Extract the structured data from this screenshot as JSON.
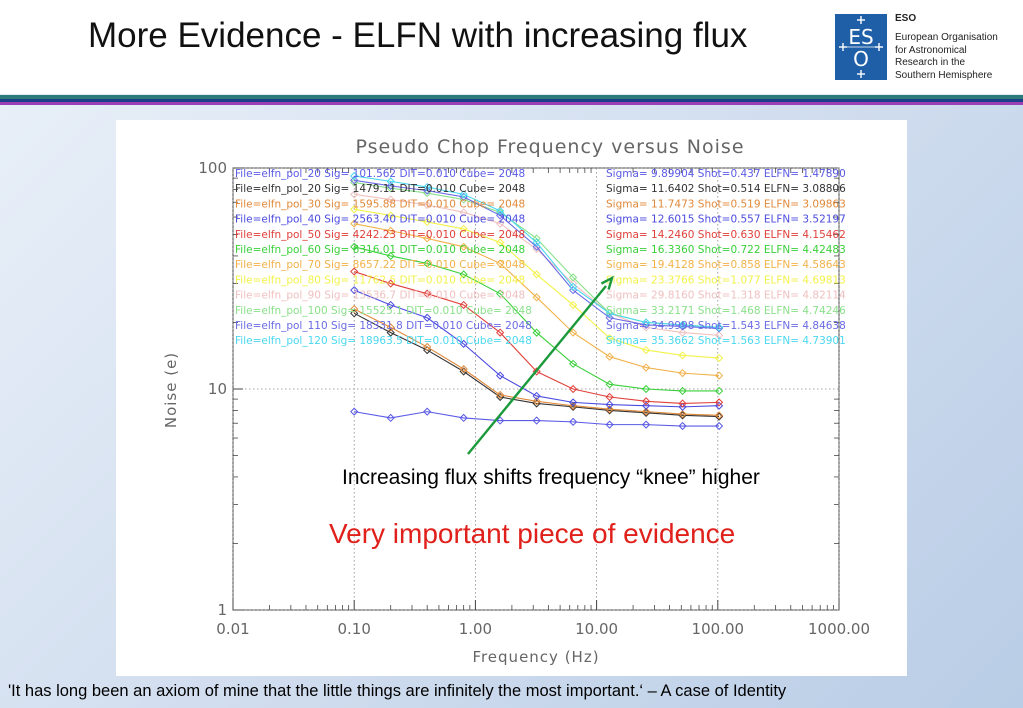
{
  "slide": {
    "title": "More Evidence - ELFN with increasing flux",
    "org": {
      "abbrev": "ESO",
      "name_lines": [
        "European Organisation",
        "for Astronomical",
        "Research in the",
        "Southern Hemisphere"
      ],
      "logo_icon": "eso-logo-icon"
    },
    "annotation_knee": "Increasing flux shifts frequency “knee” higher",
    "annotation_important": "Very important piece of evidence",
    "quote": "'It has long been an axiom of mine that the little things are infinitely the most important.‘ – A case of Identity",
    "colors": {
      "band_teal": "#2d7b7b",
      "band_navy": "#1d3f88",
      "band_purple": "#9a3fb5",
      "arrow": "#1a9a3a",
      "important_text": "#e0201b"
    }
  },
  "chart_data": {
    "type": "line",
    "title": "Pseudo Chop Frequency versus Noise",
    "xlabel": "Frequency (Hz)",
    "ylabel": "Noise (e)",
    "xscale": "log",
    "yscale": "log",
    "xlim": [
      0.01,
      1000
    ],
    "ylim": [
      1,
      100
    ],
    "x_ticks": [
      "0.01",
      "0.10",
      "1.00",
      "10.00",
      "100.00",
      "1000.00"
    ],
    "y_ticks": [
      "1",
      "10",
      "100"
    ],
    "grid": "dotted at decades",
    "legend_placement": "top, two columns",
    "x": [
      0.1,
      0.2,
      0.4,
      0.8,
      1.6,
      3.2,
      6.4,
      12.8,
      25.6,
      51.2,
      102.4
    ],
    "series": [
      {
        "legend_left": "File=elfn_pol_20 Sig=  101.562 DIT=0.010 Cube= 2048",
        "legend_right": "Sigma= 9.89904 Shot=0.437 ELFN= 1.47890",
        "color": "#5a5ae6",
        "values": [
          7.9,
          7.4,
          7.9,
          7.4,
          7.2,
          7.2,
          7.1,
          6.9,
          6.9,
          6.8,
          6.8
        ]
      },
      {
        "legend_left": "File=elfn_pol_20 Sig= 1479.11 DIT=0.010 Cube= 2048",
        "legend_right": "Sigma= 11.6402 Shot=0.514 ELFN= 3.08806",
        "color": "#333333",
        "values": [
          22,
          18,
          15,
          12,
          9.2,
          8.6,
          8.3,
          8.0,
          7.8,
          7.6,
          7.5
        ]
      },
      {
        "legend_left": "File=elfn_pol_30 Sig= 1595.88 DIT=0.010 Cube= 2048",
        "legend_right": "Sigma= 11.7473 Shot=0.519 ELFN= 3.09863",
        "color": "#e0893a",
        "values": [
          23,
          19,
          15.5,
          12.3,
          9.4,
          8.8,
          8.4,
          8.1,
          7.9,
          7.7,
          7.6
        ]
      },
      {
        "legend_left": "File=elfn_pol_40 Sig= 2563.40 DIT=0.010 Cube= 2048",
        "legend_right": "Sigma= 12.6015 Shot=0.557 ELFN= 3.52197",
        "color": "#4b4be0",
        "values": [
          28,
          24,
          21,
          16,
          11.5,
          9.3,
          8.7,
          8.5,
          8.4,
          8.3,
          8.4
        ]
      },
      {
        "legend_left": "File=elfn_pol_50 Sig= 4242.23 DIT=0.010 Cube= 2048",
        "legend_right": "Sigma= 14.2460 Shot=0.630 ELFN= 4.15462",
        "color": "#e0403a",
        "values": [
          34,
          30,
          27,
          24,
          18,
          12,
          10,
          9.2,
          8.8,
          8.6,
          8.7
        ]
      },
      {
        "legend_left": "File=elfn_pol_60 Sig= 6316.01 DIT=0.010 Cube= 2048",
        "legend_right": "Sigma= 16.3360 Shot=0.722 ELFN= 4.42483",
        "color": "#3ad03a",
        "values": [
          44,
          40,
          37,
          33,
          27,
          18,
          13,
          10.5,
          10.0,
          9.8,
          9.8
        ]
      },
      {
        "legend_left": "File=elfn_pol_70 Sig= 8657.22 DIT=0.010 Cube= 2048",
        "legend_right": "Sigma= 19.4128 Shot=0.858 ELFN= 4.58643",
        "color": "#f2b24a",
        "values": [
          56,
          52,
          48,
          44,
          37,
          26,
          18,
          14,
          12.5,
          11.8,
          11.5
        ]
      },
      {
        "legend_left": "File=elfn_pol_80 Sig= 11762.5 DIT=0.010 Cube= 2048",
        "legend_right": "Sigma= 23.3766 Shot=1.077 ELFN= 4.69813",
        "color": "#f2f24a",
        "values": [
          65,
          61,
          57,
          53,
          46,
          33,
          24,
          17,
          15,
          14.2,
          13.8
        ]
      },
      {
        "legend_left": "File=elfn_pol_90 Sig= 13536.7 DIT=0.010 Cube= 2048",
        "legend_right": "Sigma= 29.8160 Shot=1.318 ELFN= 4.82114",
        "color": "#f0c0c0",
        "values": [
          76,
          72,
          68,
          63,
          56,
          43,
          30,
          22,
          19,
          18,
          17.5
        ]
      },
      {
        "legend_left": "File=elfn_pol_100 Sig= 15525.1 DIT=0.010 Cube= 2048",
        "legend_right": "Sigma= 33.2171 Shot=1.468 ELFN= 4.74246",
        "color": "#8ae08a",
        "values": [
          86,
          81,
          77,
          72,
          63,
          48,
          32,
          22,
          20,
          19.5,
          19
        ]
      },
      {
        "legend_left": "File=elfn_pol_110 Sig= 18331.8 DIT=0.010 Cube= 2048",
        "legend_right": "Sigma= 34.9998 Shot=1.543 ELFN= 4.84638",
        "color": "#6a6ae6",
        "values": [
          88,
          83,
          79,
          74,
          61,
          44,
          28,
          21,
          19.5,
          19.2,
          18.8
        ]
      },
      {
        "legend_left": "File=elfn_pol_120 Sig= 18963.5 DIT=0.010 Cube= 2048",
        "legend_right": "Sigma= 35.3662 Shot=1.563 ELFN= 4.73901",
        "color": "#4ad8f0",
        "values": [
          92,
          87,
          82,
          76,
          64,
          46,
          29,
          22,
          20,
          19.5,
          19
        ]
      }
    ]
  }
}
